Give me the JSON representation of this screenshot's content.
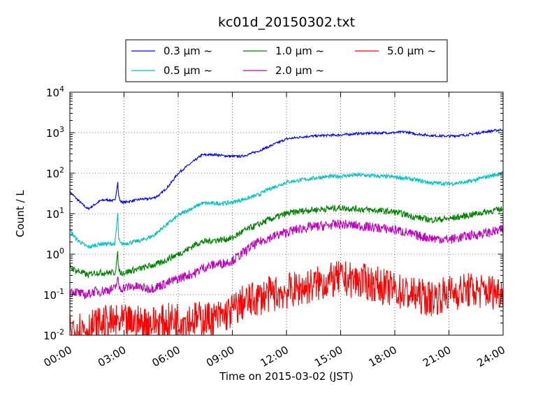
{
  "chart_data": {
    "type": "line",
    "title": "kc01d_20150302.txt",
    "xlabel": "Time on 2015-03-02 (JST)",
    "ylabel": "Count / L",
    "x_unit": "hours",
    "xlim": [
      0,
      24
    ],
    "ylim": [
      0.01,
      10000
    ],
    "yscale": "log",
    "grid": true,
    "legend_position": "top-center, above plot",
    "x_ticks": [
      "00:00",
      "03:00",
      "06:00",
      "09:00",
      "12:00",
      "15:00",
      "18:00",
      "21:00",
      "24:00"
    ],
    "y_ticks": [
      {
        "base": "10",
        "exp": "-2"
      },
      {
        "base": "10",
        "exp": "-1"
      },
      {
        "base": "10",
        "exp": "0"
      },
      {
        "base": "10",
        "exp": "1"
      },
      {
        "base": "10",
        "exp": "2"
      },
      {
        "base": "10",
        "exp": "3"
      },
      {
        "base": "10",
        "exp": "4"
      }
    ],
    "series": [
      {
        "name": "0.3 µm ~",
        "color": "#0000ff",
        "x": [
          0,
          0.3,
          0.7,
          1,
          1.3,
          1.7,
          2,
          2.5,
          2.65,
          2.7,
          2.8,
          3,
          3.5,
          4,
          4.3,
          4.7,
          5,
          5.5,
          6,
          6.5,
          7,
          7.3,
          8,
          8.5,
          9,
          9.5,
          10,
          10.5,
          11,
          12,
          13,
          14,
          15,
          16,
          17,
          18,
          18.6,
          19,
          20,
          21,
          22,
          23,
          24
        ],
        "y": [
          35,
          25,
          17,
          13,
          16,
          21,
          22,
          21,
          60,
          28,
          20,
          19,
          21,
          23,
          23,
          25,
          30,
          50,
          100,
          150,
          220,
          280,
          290,
          270,
          260,
          260,
          300,
          360,
          450,
          700,
          800,
          850,
          880,
          950,
          980,
          1000,
          1050,
          950,
          850,
          820,
          880,
          1050,
          1200
        ]
      },
      {
        "name": "0.5 µm ~",
        "color": "#00bfbf",
        "x": [
          0,
          0.3,
          0.7,
          1,
          1.3,
          1.7,
          2,
          2.5,
          2.65,
          2.7,
          2.8,
          3,
          3.5,
          4,
          4.3,
          4.7,
          5,
          5.5,
          6,
          6.5,
          7,
          7.3,
          8,
          8.5,
          9,
          9.5,
          10,
          10.5,
          11,
          12,
          13,
          14,
          15,
          16,
          17,
          18,
          18.6,
          19,
          20,
          21,
          22,
          23,
          24
        ],
        "y": [
          4,
          2.5,
          1.8,
          1.5,
          1.6,
          1.8,
          1.8,
          1.8,
          10,
          2.5,
          1.8,
          1.8,
          2,
          2.2,
          2.5,
          3,
          4,
          6,
          9,
          12,
          15,
          18,
          18,
          18,
          19,
          22,
          25,
          30,
          40,
          60,
          70,
          80,
          85,
          90,
          85,
          80,
          75,
          70,
          58,
          55,
          60,
          80,
          100
        ]
      },
      {
        "name": "1.0 µm ~",
        "color": "#008000",
        "x": [
          0,
          0.3,
          0.7,
          1,
          1.3,
          1.7,
          2,
          2.5,
          2.65,
          2.7,
          2.8,
          3,
          3.5,
          4,
          4.3,
          4.7,
          5,
          5.5,
          6,
          6.5,
          7,
          7.3,
          8,
          8.5,
          9,
          9.5,
          10,
          10.5,
          11,
          12,
          13,
          14,
          15,
          16,
          17,
          18,
          18.6,
          19,
          20,
          21,
          22,
          23,
          24
        ],
        "y": [
          0.5,
          0.4,
          0.35,
          0.3,
          0.35,
          0.35,
          0.35,
          0.35,
          1.0,
          0.45,
          0.35,
          0.35,
          0.4,
          0.45,
          0.5,
          0.55,
          0.6,
          0.8,
          1.0,
          1.3,
          1.8,
          2.0,
          2.2,
          2.3,
          2.5,
          3.5,
          4.5,
          5.5,
          7,
          10,
          12,
          13,
          14,
          13,
          12,
          11,
          9.5,
          8.5,
          7,
          7.5,
          9,
          11,
          13
        ]
      },
      {
        "name": "2.0 µm ~",
        "color": "#bf00bf",
        "x": [
          0,
          0.3,
          0.7,
          1,
          1.3,
          1.7,
          2,
          2.5,
          2.65,
          2.7,
          2.8,
          3,
          3.5,
          4,
          4.3,
          4.7,
          5,
          5.5,
          6,
          6.5,
          7,
          7.3,
          8,
          8.5,
          9,
          9.5,
          10,
          10.5,
          11,
          12,
          13,
          14,
          15,
          16,
          17,
          18,
          18.6,
          19,
          20,
          21,
          22,
          23,
          24
        ],
        "y": [
          0.12,
          0.12,
          0.1,
          0.1,
          0.12,
          0.12,
          0.13,
          0.14,
          0.25,
          0.16,
          0.14,
          0.15,
          0.16,
          0.15,
          0.14,
          0.15,
          0.17,
          0.2,
          0.25,
          0.3,
          0.35,
          0.45,
          0.55,
          0.6,
          0.7,
          1.0,
          1.5,
          2.0,
          2.5,
          3.5,
          4.5,
          5,
          5.5,
          5,
          4.5,
          4,
          3.5,
          3.0,
          2.5,
          2.3,
          2.8,
          3.3,
          4
        ]
      },
      {
        "name": "5.0 µm ~",
        "color": "#ff0000",
        "x": [
          0,
          1,
          2,
          3,
          4,
          5,
          6,
          7,
          8,
          8.5,
          9,
          9.5,
          10,
          11,
          12,
          13,
          14,
          15,
          16,
          17,
          18,
          19,
          20,
          21,
          22,
          23,
          24
        ],
        "y": [
          0.015,
          0.015,
          0.02,
          0.02,
          0.02,
          0.02,
          0.025,
          0.025,
          0.025,
          0.03,
          0.04,
          0.06,
          0.07,
          0.1,
          0.12,
          0.15,
          0.2,
          0.25,
          0.22,
          0.18,
          0.13,
          0.1,
          0.08,
          0.11,
          0.13,
          0.12,
          0.12
        ]
      }
    ]
  }
}
